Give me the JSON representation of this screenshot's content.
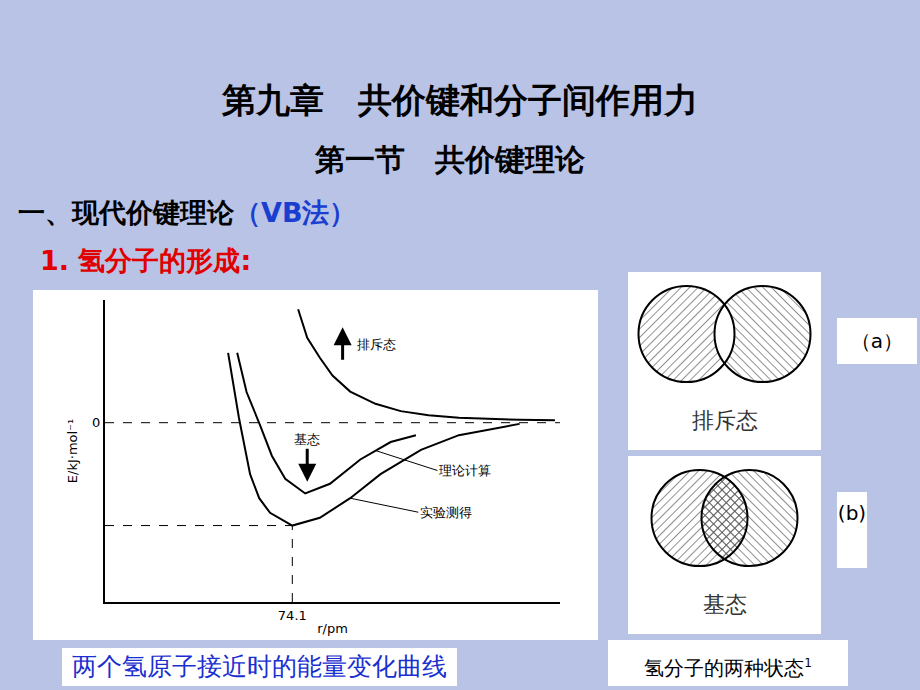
{
  "slide": {
    "chapter_title": "第九章　共价键和分子间作用力",
    "section_title": "第一节　共价键理论",
    "heading": "一、现代价键理论",
    "heading_accent": "（VB法）",
    "subheading": "1. 氢分子的形成:",
    "chart_caption": "两个氢原子接近时的能量变化曲线",
    "diagrams": [
      {
        "label": "排斥态",
        "tag": "（a）"
      },
      {
        "label": "基态",
        "tag": "(b)"
      }
    ],
    "diagrams_caption": "氢分子的两种状态",
    "page_number": "1"
  },
  "chart_data": {
    "type": "line",
    "x_label": "r/pm",
    "y_label": "E/kJ·mol⁻¹",
    "xlim": [
      0,
      180
    ],
    "ylim": [
      -760,
      520
    ],
    "xticks": [
      74.1
    ],
    "yticks": [
      0
    ],
    "grid": false,
    "annotations": [
      "基态"
    ],
    "series": [
      {
        "name": "排斥态",
        "color": "#000000",
        "x": [
          76.4,
          80,
          85,
          90,
          97,
          107,
          117,
          128,
          140,
          152,
          164,
          178
        ],
        "values": [
          481,
          360,
          275,
          200,
          132,
          80,
          49,
          32,
          21,
          15,
          12,
          10
        ]
      },
      {
        "name": "理论计算",
        "color": "#000000",
        "x": [
          52.3,
          56,
          61.4,
          66,
          71.3,
          79.2,
          89,
          101,
          113,
          123
        ],
        "values": [
          296,
          130,
          -12,
          -140,
          -238,
          -300,
          -259,
          -156,
          -82,
          -53
        ]
      },
      {
        "name": "实验测得",
        "color": "#000000",
        "x": [
          48.7,
          53,
          57.4,
          61,
          65.3,
          74.1,
          85,
          97,
          109,
          125,
          140,
          164
        ],
        "values": [
          296,
          20,
          -218,
          -320,
          -382,
          -436,
          -403,
          -320,
          -218,
          -115,
          -53,
          -5
        ]
      }
    ]
  }
}
